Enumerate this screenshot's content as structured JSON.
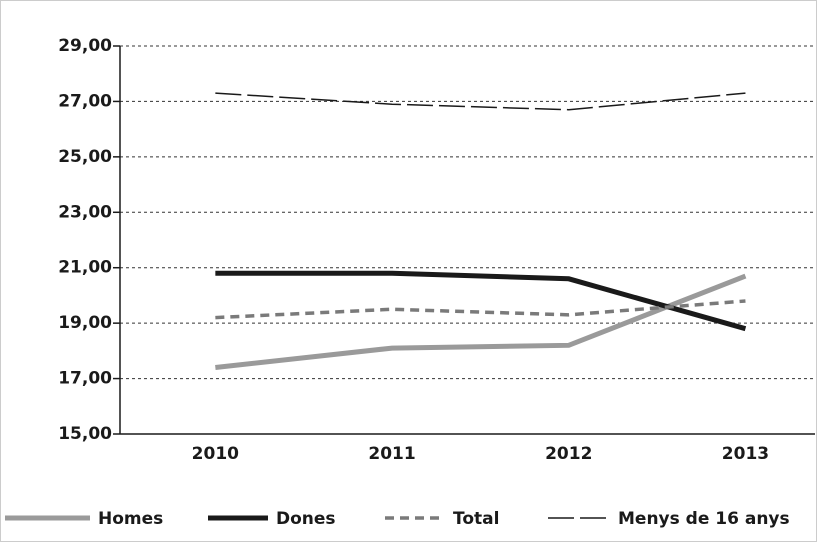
{
  "chart_data": {
    "type": "line",
    "categories": [
      "2010",
      "2011",
      "2012",
      "2013"
    ],
    "series": [
      {
        "name": "Homes",
        "color": "#9a9a9a",
        "values": [
          17.4,
          18.1,
          18.2,
          20.7
        ]
      },
      {
        "name": "Dones",
        "color": "#1a1a1a",
        "values": [
          20.8,
          20.8,
          20.6,
          18.8
        ]
      },
      {
        "name": "Total",
        "color": "#7a7a7a",
        "values": [
          19.2,
          19.5,
          19.3,
          19.8
        ]
      },
      {
        "name": "Menys de 16 anys",
        "color": "#1a1a1a",
        "values": [
          27.3,
          26.9,
          26.7,
          27.3
        ]
      }
    ],
    "ylim": [
      15,
      29
    ],
    "yticks": [
      {
        "value": 15,
        "label": "15,00"
      },
      {
        "value": 17,
        "label": "17,00"
      },
      {
        "value": 19,
        "label": "19,00"
      },
      {
        "value": 21,
        "label": "21,00"
      },
      {
        "value": 23,
        "label": "23,00"
      },
      {
        "value": 25,
        "label": "25,00"
      },
      {
        "value": 27,
        "label": "27,00"
      },
      {
        "value": 29,
        "label": "29,00"
      }
    ],
    "grid": true
  }
}
